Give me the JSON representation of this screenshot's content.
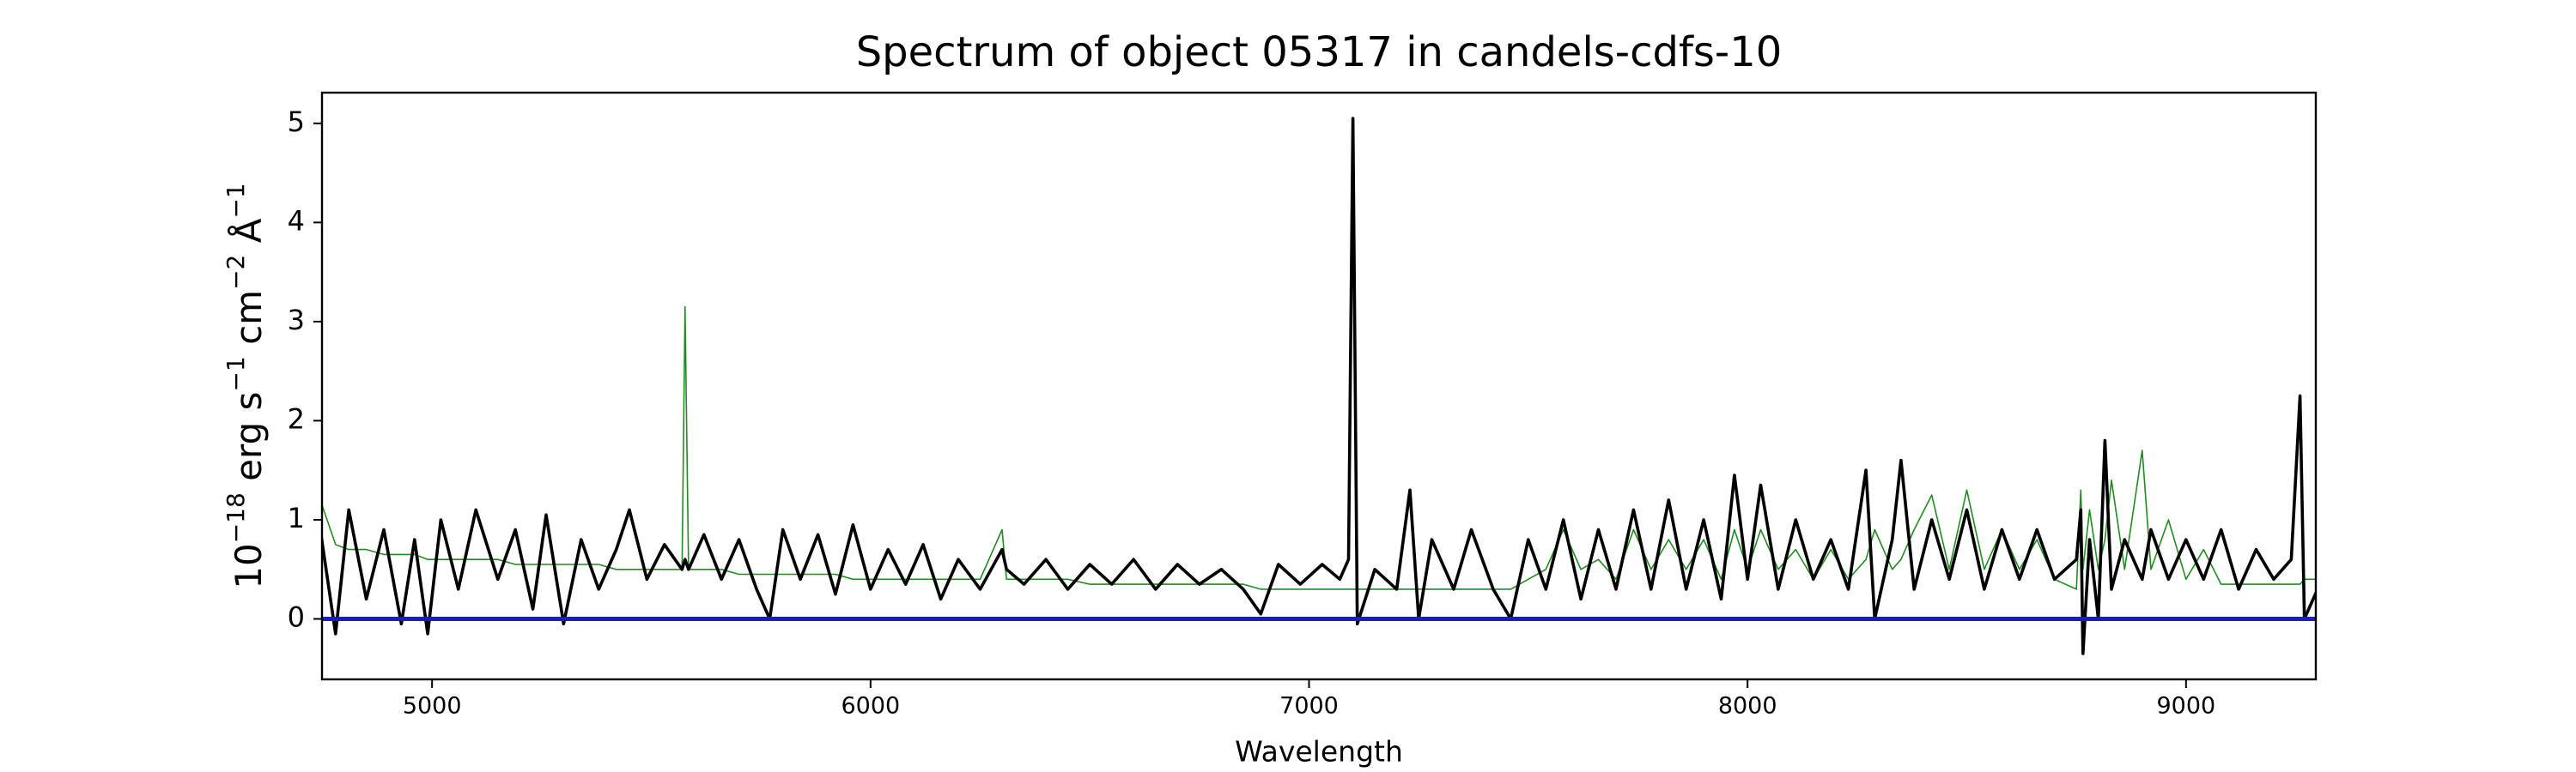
{
  "chart_data": {
    "type": "line",
    "title": "Spectrum of object 05317 in candels-cdfs-10",
    "xlabel": "Wavelength",
    "ylabel_parts": [
      {
        "text": "10",
        "sup": "−18"
      },
      {
        "text": " erg s",
        "sup": "−1"
      },
      {
        "text": " cm",
        "sup": "−2"
      },
      {
        "text": " Å",
        "sup": "−1"
      }
    ],
    "xlim": [
      4749,
      9296
    ],
    "ylim": [
      -0.61,
      5.31
    ],
    "xticks": [
      5000,
      6000,
      7000,
      8000,
      9000
    ],
    "yticks": [
      0,
      1,
      2,
      3,
      4,
      5
    ],
    "x": [
      4745,
      4780,
      4810,
      4850,
      4890,
      4930,
      4960,
      4990,
      5020,
      5060,
      5100,
      5150,
      5190,
      5230,
      5260,
      5300,
      5340,
      5380,
      5420,
      5450,
      5490,
      5530,
      5570,
      5577,
      5585,
      5620,
      5660,
      5700,
      5740,
      5770,
      5800,
      5840,
      5880,
      5920,
      5960,
      6000,
      6040,
      6080,
      6120,
      6160,
      6200,
      6250,
      6300,
      6310,
      6350,
      6400,
      6450,
      6500,
      6550,
      6600,
      6650,
      6700,
      6750,
      6800,
      6850,
      6890,
      6930,
      6980,
      7030,
      7070,
      7090,
      7100,
      7110,
      7150,
      7200,
      7230,
      7250,
      7280,
      7330,
      7370,
      7420,
      7460,
      7500,
      7540,
      7580,
      7620,
      7660,
      7700,
      7740,
      7780,
      7820,
      7860,
      7900,
      7940,
      7970,
      8000,
      8030,
      8070,
      8110,
      8150,
      8190,
      8230,
      8270,
      8290,
      8330,
      8350,
      8380,
      8420,
      8460,
      8500,
      8540,
      8580,
      8620,
      8660,
      8700,
      8750,
      8760,
      8765,
      8780,
      8800,
      8815,
      8830,
      8860,
      8900,
      8920,
      8960,
      9000,
      9040,
      9080,
      9120,
      9160,
      9200,
      9240,
      9260,
      9270,
      9300
    ],
    "series": [
      {
        "color": "#228b22",
        "line_width": 1.6,
        "values": [
          1.2,
          0.75,
          0.7,
          0.7,
          0.65,
          0.65,
          0.65,
          0.6,
          0.6,
          0.6,
          0.6,
          0.6,
          0.55,
          0.55,
          0.55,
          0.55,
          0.55,
          0.55,
          0.5,
          0.5,
          0.5,
          0.5,
          0.5,
          3.15,
          0.5,
          0.5,
          0.5,
          0.45,
          0.45,
          0.45,
          0.45,
          0.45,
          0.45,
          0.45,
          0.4,
          0.4,
          0.4,
          0.4,
          0.4,
          0.4,
          0.4,
          0.4,
          0.9,
          0.4,
          0.4,
          0.4,
          0.4,
          0.35,
          0.35,
          0.35,
          0.35,
          0.35,
          0.35,
          0.35,
          0.35,
          0.3,
          0.3,
          0.3,
          0.3,
          0.3,
          0.3,
          0.3,
          0.3,
          0.3,
          0.3,
          0.3,
          0.3,
          0.3,
          0.3,
          0.3,
          0.3,
          0.3,
          0.4,
          0.5,
          0.9,
          0.5,
          0.6,
          0.4,
          0.9,
          0.5,
          0.8,
          0.5,
          0.8,
          0.4,
          0.9,
          0.5,
          0.9,
          0.5,
          0.7,
          0.4,
          0.7,
          0.4,
          0.6,
          0.9,
          0.5,
          0.6,
          0.9,
          1.25,
          0.5,
          1.3,
          0.5,
          0.9,
          0.5,
          0.8,
          0.4,
          0.3,
          1.3,
          0.5,
          1.1,
          0.5,
          0.8,
          1.4,
          0.5,
          1.7,
          0.5,
          1.0,
          0.4,
          0.7,
          0.35,
          0.35,
          0.35,
          0.35,
          0.35,
          0.35,
          0.4,
          0.4
        ]
      },
      {
        "color": "#000000",
        "line_width": 3.6,
        "values": [
          0.9,
          -0.15,
          1.1,
          0.2,
          0.9,
          -0.05,
          0.8,
          -0.15,
          1.0,
          0.3,
          1.1,
          0.4,
          0.9,
          0.1,
          1.05,
          -0.05,
          0.8,
          0.3,
          0.7,
          1.1,
          0.4,
          0.75,
          0.5,
          0.6,
          0.5,
          0.85,
          0.4,
          0.8,
          0.3,
          0.0,
          0.9,
          0.4,
          0.85,
          0.25,
          0.95,
          0.3,
          0.7,
          0.35,
          0.75,
          0.2,
          0.6,
          0.3,
          0.7,
          0.5,
          0.35,
          0.6,
          0.3,
          0.55,
          0.35,
          0.6,
          0.3,
          0.55,
          0.35,
          0.5,
          0.3,
          0.05,
          0.55,
          0.35,
          0.55,
          0.4,
          0.6,
          5.05,
          -0.05,
          0.5,
          0.3,
          1.3,
          0.0,
          0.8,
          0.3,
          0.9,
          0.3,
          0.0,
          0.8,
          0.3,
          1.0,
          0.2,
          0.9,
          0.3,
          1.1,
          0.3,
          1.2,
          0.3,
          1.0,
          0.2,
          1.45,
          0.4,
          1.35,
          0.3,
          1.0,
          0.4,
          0.8,
          0.3,
          1.5,
          0.0,
          0.8,
          1.6,
          0.3,
          1.0,
          0.4,
          1.1,
          0.3,
          0.9,
          0.4,
          0.9,
          0.4,
          0.6,
          1.1,
          -0.35,
          0.8,
          0.0,
          1.8,
          0.3,
          0.8,
          0.4,
          0.9,
          0.4,
          0.8,
          0.4,
          0.9,
          0.3,
          0.7,
          0.4,
          0.6,
          2.25,
          0.0,
          0.3
        ]
      }
    ],
    "hlines": [
      {
        "y": 0,
        "color": "#1a1acc",
        "line_width": 5
      }
    ]
  }
}
